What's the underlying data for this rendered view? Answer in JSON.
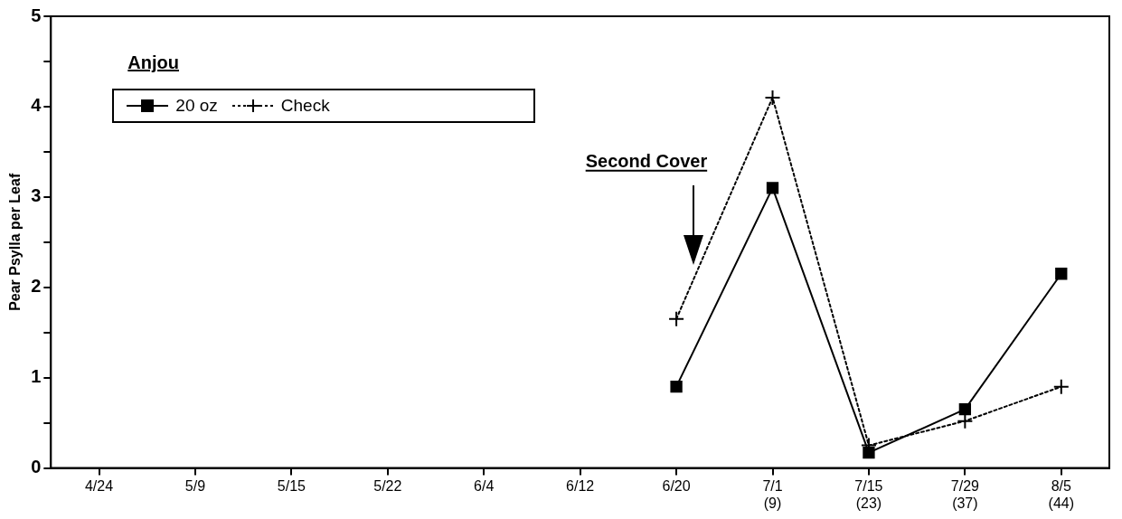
{
  "chart_data": {
    "type": "line",
    "ylabel": "Pear Psylla per Leaf",
    "legend_title": "Anjou",
    "categories": [
      "4/24",
      "5/9",
      "5/15",
      "5/22",
      "6/4",
      "6/12",
      "6/20",
      "7/1\n(9)",
      "7/15\n(23)",
      "7/29\n(37)",
      "8/5\n(44)"
    ],
    "series": [
      {
        "name": "20 oz",
        "color": "#000000",
        "marker": "square",
        "line_style": "solid",
        "values": [
          null,
          null,
          null,
          null,
          null,
          null,
          0.9,
          3.1,
          0.17,
          0.65,
          2.15
        ]
      },
      {
        "name": "Check",
        "color": "#000000",
        "marker": "cross",
        "line_style": "dotted",
        "values": [
          null,
          null,
          null,
          null,
          null,
          null,
          1.65,
          4.1,
          0.25,
          0.52,
          0.9
        ]
      }
    ],
    "ylim": [
      0,
      5
    ],
    "yticks": [
      0,
      {
        "value": 0.5,
        "label": null
      },
      1,
      {
        "value": 1.5,
        "label": null
      },
      2,
      {
        "value": 2.5,
        "label": null
      },
      3,
      {
        "value": 3.5,
        "label": null
      },
      4,
      {
        "value": 4.5,
        "label": null
      },
      5
    ],
    "grid": false,
    "legend": "top left",
    "annotations": [
      "Second Cover"
    ]
  }
}
